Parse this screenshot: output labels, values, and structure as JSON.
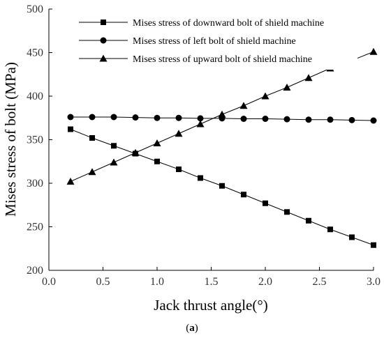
{
  "chart_data": {
    "type": "line",
    "xlabel": "Jack thrust angle(°)",
    "ylabel": "Mises stress of bolt (MPa)",
    "xlim": [
      0.0,
      3.0
    ],
    "ylim": [
      200,
      500
    ],
    "x_ticks": [
      "0.0",
      "0.5",
      "1.0",
      "1.5",
      "2.0",
      "2.5",
      "3.0"
    ],
    "y_ticks": [
      "200",
      "250",
      "300",
      "350",
      "400",
      "450",
      "500"
    ],
    "grid": false,
    "legend_position": "top",
    "x": [
      0.2,
      0.4,
      0.6,
      0.8,
      1.0,
      1.2,
      1.4,
      1.6,
      1.8,
      2.0,
      2.2,
      2.4,
      2.6,
      2.8,
      3.0
    ],
    "series": [
      {
        "name": "Mises stress of downward bolt of shield machine",
        "marker": "square",
        "color": "#000000",
        "values": [
          362,
          352,
          343,
          334,
          325,
          316,
          306,
          297,
          287,
          277,
          267,
          257,
          247,
          238,
          229
        ]
      },
      {
        "name": "Mises stress of left bolt of shield machine",
        "marker": "circle",
        "color": "#000000",
        "values": [
          376,
          376,
          376,
          375.5,
          375,
          375,
          374.5,
          374.5,
          374,
          374,
          373.5,
          373,
          373,
          372.5,
          372
        ]
      },
      {
        "name": "Mises stress of upward bolt of shield machine",
        "marker": "triangle",
        "color": "#000000",
        "values": [
          302,
          313,
          324,
          335,
          346,
          357,
          368,
          379,
          389,
          400,
          410,
          421,
          432,
          441,
          451
        ]
      }
    ]
  },
  "caption": {
    "open": "(",
    "label": "a",
    "close": ")"
  }
}
